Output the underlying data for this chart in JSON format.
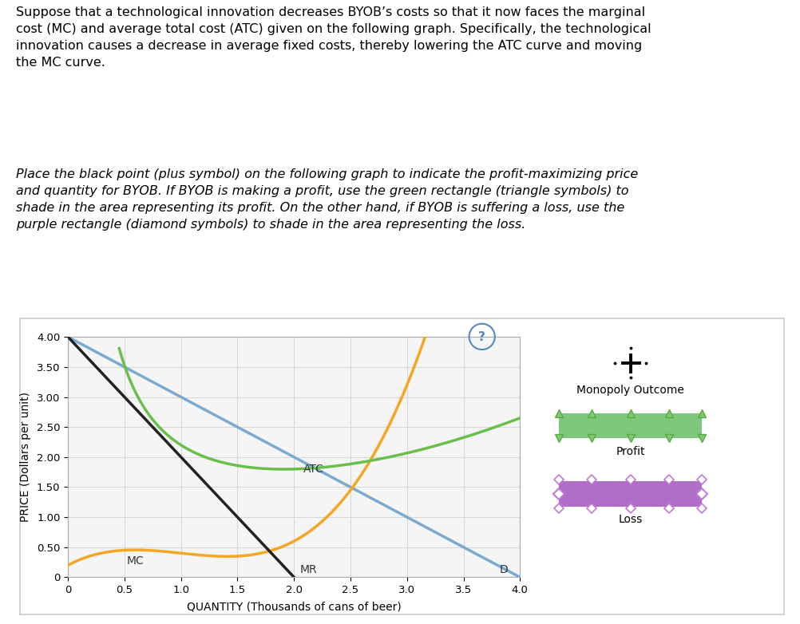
{
  "text1": "Suppose that a technological innovation decreases BYOB’s costs so that it now faces the marginal\ncost (MC) and average total cost (ATC) given on the following graph. Specifically, the technological\ninnovation causes a decrease in average fixed costs, thereby lowering the ATC curve and moving\nthe MC curve.",
  "text2": "Place the black point (plus symbol) on the following graph to indicate the profit-maximizing price\nand quantity for BYOB. If BYOB is making a profit, use the green rectangle (triangle symbols) to\nshade in the area representing its profit. On the other hand, if BYOB is suffering a loss, use the\npurple rectangle (diamond symbols) to shade in the area representing the loss.",
  "xlabel": "QUANTITY (Thousands of cans of beer)",
  "ylabel": "PRICE (Dollars per unit)",
  "xlim": [
    0,
    4.0
  ],
  "ylim": [
    0,
    4.0
  ],
  "xticks": [
    0,
    0.5,
    1.0,
    1.5,
    2.0,
    2.5,
    3.0,
    3.5,
    4.0
  ],
  "yticks": [
    0,
    0.5,
    1.0,
    1.5,
    2.0,
    2.5,
    3.0,
    3.5,
    4.0
  ],
  "D_color": "#7aaad0",
  "MC_color": "#f5a623",
  "ATC_color": "#6abf4b",
  "MR_color": "#222222",
  "legend_green_color": "#7ec87e",
  "legend_green_edge": "#5aaa3a",
  "legend_purple_color": "#b06ec8",
  "legend_purple_edge": "#c07ad8",
  "panel_border": "#cccccc",
  "grid_color": "#d8d8d8",
  "panel_bg": "#f5f5f5",
  "text1_fontsize": 11.5,
  "text2_fontsize": 11.5,
  "axis_fontsize": 10,
  "tick_fontsize": 9.5
}
